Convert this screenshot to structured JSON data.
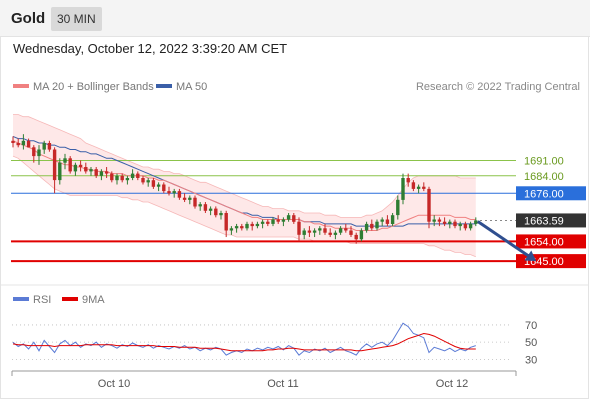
{
  "header": {
    "instrument": "Gold",
    "timeframe": "30 MIN"
  },
  "timestamp": "Wednesday, October 12, 2022 3:39:20 AM CET",
  "legend": {
    "ma20": "MA 20 + Bollinger Bands",
    "ma50": "MA 50",
    "source": "Research © 2022 Trading Central"
  },
  "rsi_legend": {
    "rsi": "RSI",
    "ma9": "9MA"
  },
  "colors": {
    "up": "#2e7d32",
    "down": "#c62828",
    "ma20": "#f08080",
    "ma50": "#3a5fa8",
    "band": "#fde0e0",
    "resistance": "#8bc34a",
    "support": "#e00000",
    "last": "#333333",
    "arrow": "#2f4f8f",
    "rsi": "#5b7bd5",
    "rsi_ma": "#e00000"
  },
  "chart_data": [
    {
      "type": "candlestick",
      "x_labels": [
        "Oct 10",
        "Oct 11",
        "Oct 12"
      ],
      "price_range": [
        1635,
        1720
      ],
      "candles": [
        [
          1700,
          1702,
          1697,
          1699
        ],
        [
          1699,
          1701,
          1697,
          1698
        ],
        [
          1698,
          1703,
          1696,
          1700
        ],
        [
          1700,
          1701,
          1697,
          1697
        ],
        [
          1697,
          1698,
          1690,
          1693
        ],
        [
          1693,
          1698,
          1689,
          1696
        ],
        [
          1696,
          1700,
          1694,
          1699
        ],
        [
          1699,
          1700,
          1695,
          1696
        ],
        [
          1696,
          1697,
          1676,
          1682
        ],
        [
          1682,
          1692,
          1680,
          1690
        ],
        [
          1690,
          1694,
          1687,
          1692
        ],
        [
          1692,
          1693,
          1685,
          1686
        ],
        [
          1686,
          1690,
          1684,
          1689
        ],
        [
          1689,
          1691,
          1686,
          1688
        ],
        [
          1688,
          1690,
          1685,
          1686
        ],
        [
          1686,
          1688,
          1684,
          1687
        ],
        [
          1687,
          1688,
          1683,
          1684
        ],
        [
          1684,
          1687,
          1682,
          1686
        ],
        [
          1686,
          1688,
          1683,
          1685
        ],
        [
          1685,
          1686,
          1681,
          1682
        ],
        [
          1682,
          1685,
          1680,
          1684
        ],
        [
          1684,
          1685,
          1681,
          1682
        ],
        [
          1682,
          1684,
          1680,
          1683
        ],
        [
          1683,
          1687,
          1682,
          1685
        ],
        [
          1685,
          1686,
          1682,
          1683
        ],
        [
          1683,
          1684,
          1680,
          1681
        ],
        [
          1681,
          1683,
          1679,
          1682
        ],
        [
          1682,
          1683,
          1678,
          1679
        ],
        [
          1679,
          1681,
          1677,
          1680
        ],
        [
          1680,
          1681,
          1676,
          1677
        ],
        [
          1677,
          1679,
          1675,
          1676
        ],
        [
          1676,
          1678,
          1674,
          1677
        ],
        [
          1677,
          1678,
          1673,
          1674
        ],
        [
          1674,
          1676,
          1672,
          1673
        ],
        [
          1673,
          1675,
          1671,
          1674
        ],
        [
          1674,
          1675,
          1669,
          1670
        ],
        [
          1670,
          1672,
          1668,
          1671
        ],
        [
          1671,
          1672,
          1667,
          1668
        ],
        [
          1668,
          1670,
          1666,
          1669
        ],
        [
          1669,
          1670,
          1665,
          1666
        ],
        [
          1666,
          1668,
          1664,
          1667
        ],
        [
          1667,
          1668,
          1656,
          1659
        ],
        [
          1659,
          1661,
          1657,
          1660
        ],
        [
          1660,
          1662,
          1658,
          1661
        ],
        [
          1661,
          1662,
          1659,
          1660
        ],
        [
          1660,
          1663,
          1659,
          1662
        ],
        [
          1662,
          1663,
          1659,
          1661
        ],
        [
          1661,
          1663,
          1660,
          1662
        ],
        [
          1662,
          1664,
          1660,
          1663
        ],
        [
          1663,
          1664,
          1661,
          1662
        ],
        [
          1662,
          1665,
          1661,
          1664
        ],
        [
          1664,
          1666,
          1662,
          1663
        ],
        [
          1663,
          1665,
          1661,
          1664
        ],
        [
          1664,
          1667,
          1663,
          1666
        ],
        [
          1666,
          1667,
          1662,
          1663
        ],
        [
          1663,
          1665,
          1654,
          1657
        ],
        [
          1657,
          1660,
          1655,
          1659
        ],
        [
          1659,
          1661,
          1656,
          1658
        ],
        [
          1658,
          1660,
          1656,
          1659
        ],
        [
          1659,
          1661,
          1657,
          1660
        ],
        [
          1660,
          1662,
          1657,
          1658
        ],
        [
          1658,
          1660,
          1656,
          1657
        ],
        [
          1657,
          1659,
          1655,
          1658
        ],
        [
          1658,
          1661,
          1657,
          1660
        ],
        [
          1660,
          1662,
          1658,
          1659
        ],
        [
          1659,
          1661,
          1656,
          1657
        ],
        [
          1657,
          1658,
          1653,
          1655
        ],
        [
          1655,
          1660,
          1654,
          1659
        ],
        [
          1659,
          1663,
          1658,
          1662
        ],
        [
          1662,
          1664,
          1659,
          1660
        ],
        [
          1660,
          1664,
          1659,
          1663
        ],
        [
          1663,
          1665,
          1661,
          1664
        ],
        [
          1664,
          1666,
          1661,
          1662
        ],
        [
          1662,
          1667,
          1661,
          1666
        ],
        [
          1666,
          1675,
          1664,
          1673
        ],
        [
          1673,
          1685,
          1671,
          1683
        ],
        [
          1683,
          1685,
          1679,
          1681
        ],
        [
          1681,
          1682,
          1677,
          1678
        ],
        [
          1678,
          1680,
          1676,
          1679
        ],
        [
          1679,
          1681,
          1677,
          1678
        ],
        [
          1678,
          1679,
          1660,
          1663
        ],
        [
          1663,
          1666,
          1661,
          1664
        ],
        [
          1664,
          1665,
          1661,
          1663
        ],
        [
          1663,
          1665,
          1661,
          1662
        ],
        [
          1662,
          1664,
          1660,
          1663
        ],
        [
          1663,
          1664,
          1660,
          1661
        ],
        [
          1661,
          1663,
          1659,
          1662
        ],
        [
          1662,
          1663,
          1659,
          1660
        ],
        [
          1660,
          1663,
          1659,
          1662
        ],
        [
          1662,
          1665,
          1661,
          1663.59
        ]
      ],
      "ma20": [
        1700,
        1699,
        1698,
        1697,
        1696,
        1694,
        1693,
        1692,
        1691,
        1690,
        1689,
        1689,
        1688,
        1688,
        1687,
        1687,
        1686,
        1686,
        1686,
        1685,
        1685,
        1685,
        1684,
        1684,
        1684,
        1684,
        1683,
        1683,
        1682,
        1682,
        1681,
        1680,
        1679,
        1678,
        1677,
        1676,
        1675,
        1674,
        1673,
        1672,
        1671,
        1670,
        1669,
        1668,
        1667,
        1666,
        1665,
        1665,
        1664,
        1664,
        1664,
        1664,
        1664,
        1664,
        1664,
        1664,
        1663,
        1663,
        1662,
        1662,
        1661,
        1661,
        1660,
        1660,
        1660,
        1660,
        1659,
        1659,
        1659,
        1659,
        1659,
        1660,
        1660,
        1661,
        1662,
        1663,
        1664,
        1665,
        1666,
        1666,
        1666,
        1666,
        1666,
        1666,
        1666,
        1665,
        1665,
        1665,
        1664,
        1664
      ],
      "bb_upper": [
        1712,
        1712,
        1711,
        1711,
        1710,
        1709,
        1708,
        1707,
        1706,
        1705,
        1704,
        1703,
        1702,
        1701,
        1699,
        1698,
        1697,
        1696,
        1695,
        1694,
        1693,
        1692,
        1691,
        1690,
        1689,
        1688,
        1688,
        1687,
        1687,
        1686,
        1686,
        1685,
        1685,
        1684,
        1683,
        1682,
        1681,
        1681,
        1680,
        1679,
        1678,
        1677,
        1676,
        1675,
        1674,
        1673,
        1672,
        1671,
        1670,
        1670,
        1669,
        1669,
        1669,
        1668,
        1668,
        1668,
        1667,
        1667,
        1667,
        1667,
        1666,
        1666,
        1666,
        1665,
        1665,
        1665,
        1665,
        1665,
        1666,
        1666,
        1667,
        1668,
        1670,
        1672,
        1675,
        1678,
        1681,
        1683,
        1684,
        1684,
        1684,
        1684,
        1684,
        1684,
        1684,
        1684,
        1683,
        1683,
        1683,
        1683
      ],
      "bb_lower": [
        1693,
        1692,
        1690,
        1688,
        1686,
        1684,
        1682,
        1680,
        1678,
        1677,
        1676,
        1675,
        1675,
        1675,
        1675,
        1675,
        1675,
        1675,
        1675,
        1675,
        1675,
        1674,
        1674,
        1673,
        1673,
        1672,
        1672,
        1671,
        1670,
        1669,
        1668,
        1667,
        1666,
        1665,
        1664,
        1663,
        1662,
        1661,
        1660,
        1659,
        1658,
        1657,
        1657,
        1656,
        1656,
        1656,
        1656,
        1656,
        1656,
        1656,
        1656,
        1656,
        1656,
        1656,
        1656,
        1655,
        1655,
        1655,
        1654,
        1654,
        1654,
        1654,
        1654,
        1654,
        1654,
        1653,
        1653,
        1653,
        1653,
        1653,
        1653,
        1653,
        1653,
        1653,
        1653,
        1653,
        1653,
        1653,
        1653,
        1653,
        1652,
        1652,
        1651,
        1650,
        1650,
        1649,
        1649,
        1648,
        1648,
        1647
      ],
      "ma50": [
        1702,
        1701,
        1701,
        1700,
        1700,
        1699,
        1699,
        1698,
        1698,
        1697,
        1697,
        1696,
        1696,
        1695,
        1695,
        1694,
        1694,
        1693,
        1692,
        1692,
        1691,
        1690,
        1689,
        1688,
        1687,
        1686,
        1685,
        1684,
        1683,
        1682,
        1681,
        1680,
        1679,
        1678,
        1677,
        1676,
        1675,
        1674,
        1673,
        1672,
        1671,
        1670,
        1669,
        1668,
        1667,
        1667,
        1666,
        1666,
        1665,
        1665,
        1665,
        1664,
        1664,
        1664,
        1664,
        1664,
        1663,
        1663,
        1663,
        1663,
        1662,
        1662,
        1662,
        1662,
        1662,
        1662,
        1661,
        1661,
        1661,
        1661,
        1661,
        1661,
        1661,
        1661,
        1661,
        1661,
        1662,
        1662,
        1662,
        1662,
        1662,
        1662,
        1662,
        1662,
        1662,
        1662,
        1662,
        1662,
        1662,
        1662
      ],
      "levels": [
        {
          "value": 1691.0,
          "label": "1691.00",
          "kind": "resistance"
        },
        {
          "value": 1684.0,
          "label": "1684.00",
          "kind": "resistance"
        },
        {
          "value": 1676.0,
          "label": "1676.00",
          "kind": "pivot"
        },
        {
          "value": 1663.59,
          "label": "1663.59",
          "kind": "last"
        },
        {
          "value": 1654.0,
          "label": "1654.00",
          "kind": "support"
        },
        {
          "value": 1645.0,
          "label": "1645.00",
          "kind": "support"
        }
      ],
      "forecast_arrow": {
        "from_index": 89,
        "from_value": 1664,
        "to_index": 101,
        "to_value": 1645
      }
    },
    {
      "type": "line",
      "title": "RSI",
      "y_ticks": [
        "70",
        "50",
        "30"
      ],
      "y_range": [
        20,
        85
      ],
      "rsi": [
        50,
        45,
        48,
        42,
        50,
        40,
        52,
        45,
        38,
        48,
        52,
        46,
        50,
        44,
        48,
        46,
        50,
        44,
        48,
        46,
        43,
        47,
        45,
        49,
        46,
        44,
        47,
        43,
        46,
        44,
        42,
        45,
        43,
        46,
        42,
        44,
        40,
        43,
        41,
        44,
        42,
        35,
        38,
        40,
        38,
        42,
        40,
        43,
        41,
        44,
        42,
        45,
        41,
        46,
        43,
        35,
        40,
        38,
        42,
        40,
        43,
        38,
        41,
        44,
        40,
        38,
        35,
        43,
        48,
        44,
        48,
        50,
        46,
        52,
        62,
        72,
        68,
        60,
        58,
        55,
        38,
        44,
        42,
        40,
        43,
        39,
        42,
        40,
        44,
        46
      ],
      "ma9": [
        48,
        47,
        47,
        46,
        46,
        46,
        46,
        46,
        45,
        46,
        46,
        46,
        46,
        46,
        47,
        47,
        47,
        47,
        47,
        47,
        46,
        46,
        46,
        46,
        46,
        46,
        46,
        46,
        45,
        45,
        45,
        45,
        44,
        44,
        44,
        44,
        43,
        43,
        43,
        43,
        42,
        41,
        40,
        40,
        40,
        40,
        40,
        40,
        40,
        41,
        41,
        42,
        42,
        43,
        43,
        42,
        41,
        41,
        41,
        41,
        41,
        41,
        41,
        41,
        41,
        41,
        40,
        40,
        41,
        42,
        43,
        44,
        45,
        46,
        48,
        51,
        54,
        56,
        58,
        60,
        59,
        57,
        54,
        51,
        48,
        45,
        43,
        42,
        42,
        42
      ]
    }
  ]
}
